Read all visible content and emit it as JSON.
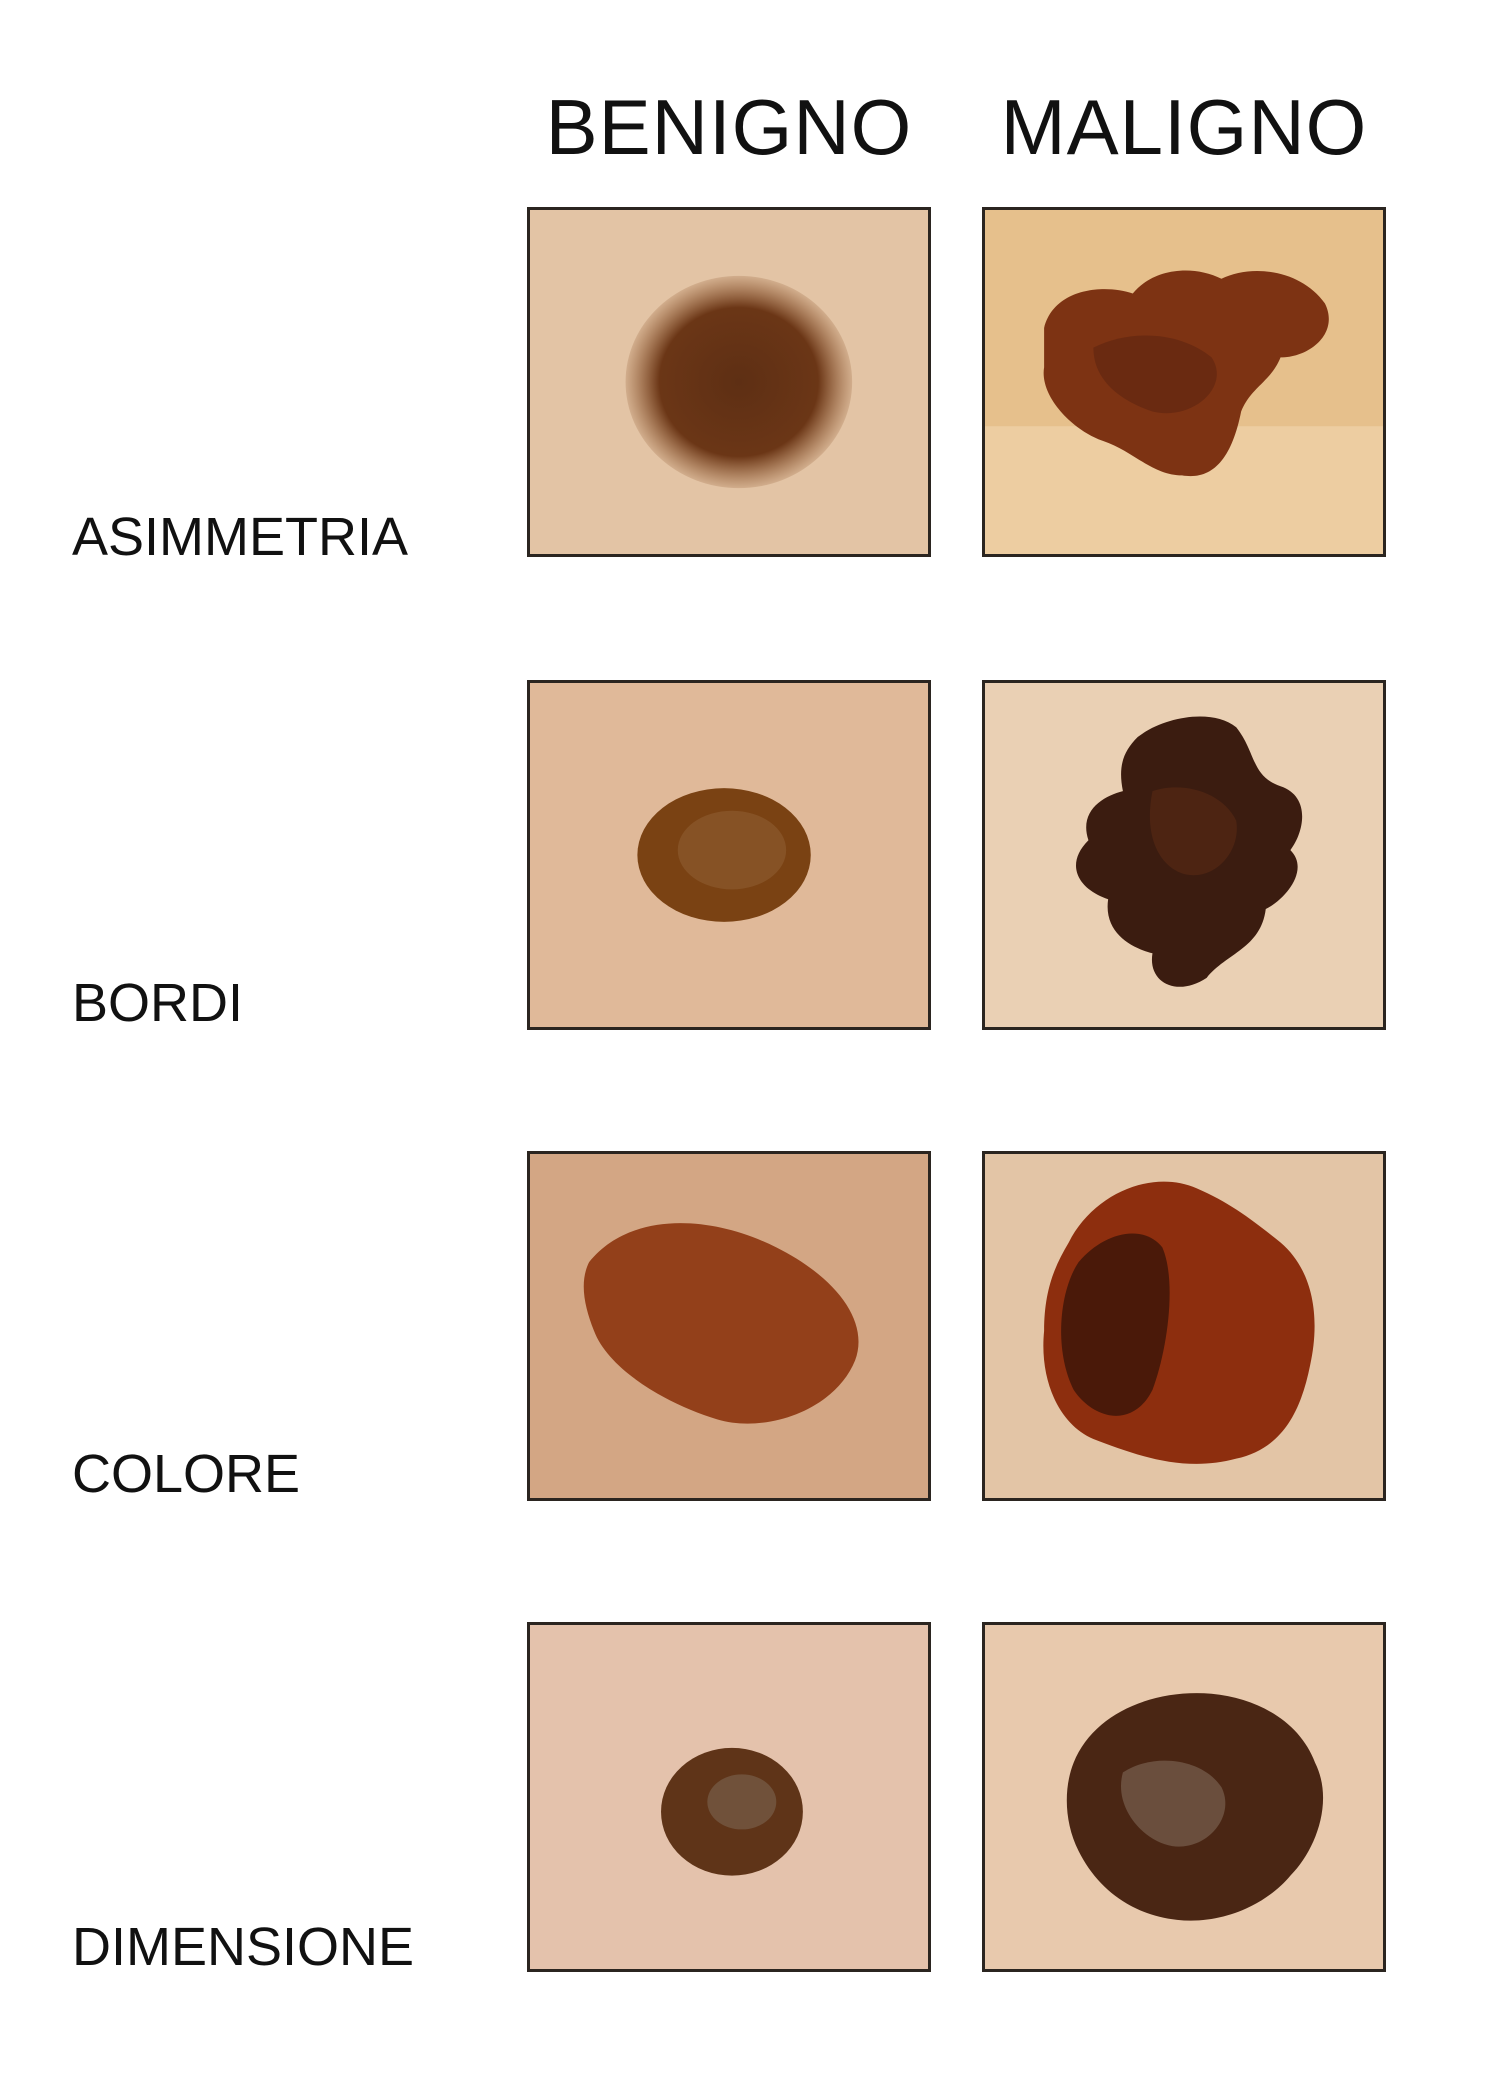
{
  "columns": {
    "benign": "BENIGNO",
    "malignant": "MALIGNO"
  },
  "rows": [
    {
      "label": "ASIMMETRIA"
    },
    {
      "label": "BORDI"
    },
    {
      "label": "COLORE"
    },
    {
      "label": "DIMENSIONE"
    }
  ],
  "palette": {
    "skin_light": "#ead2b8",
    "skin_warm": "#e3b98f",
    "skin_orange": "#dba871",
    "mole_brown": "#7a3f1c",
    "mole_dark": "#3e1e10",
    "mole_red": "#8e2a10",
    "frame": "#2b2520"
  }
}
